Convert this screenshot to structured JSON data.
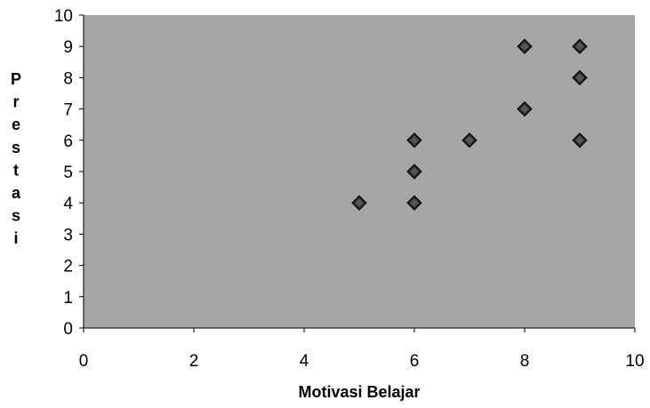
{
  "chart_data": {
    "type": "scatter",
    "title": "",
    "xlabel": "Motivasi Belajar",
    "ylabel": "Prestasi",
    "xlim": [
      0,
      10
    ],
    "ylim": [
      0,
      10
    ],
    "x_ticks": [
      0,
      2,
      4,
      6,
      8,
      10
    ],
    "y_ticks": [
      0,
      1,
      2,
      3,
      4,
      5,
      6,
      7,
      8,
      9,
      10
    ],
    "plot_background": "#a6a6a6",
    "marker": "diamond",
    "marker_color": "#262626",
    "grid": false,
    "legend": "none",
    "series": [
      {
        "points": [
          {
            "x": 5,
            "y": 4
          },
          {
            "x": 6,
            "y": 4
          },
          {
            "x": 6,
            "y": 5
          },
          {
            "x": 6,
            "y": 6
          },
          {
            "x": 7,
            "y": 6
          },
          {
            "x": 8,
            "y": 7
          },
          {
            "x": 8,
            "y": 9
          },
          {
            "x": 9,
            "y": 9
          },
          {
            "x": 9,
            "y": 8
          },
          {
            "x": 9,
            "y": 6
          }
        ]
      }
    ]
  }
}
